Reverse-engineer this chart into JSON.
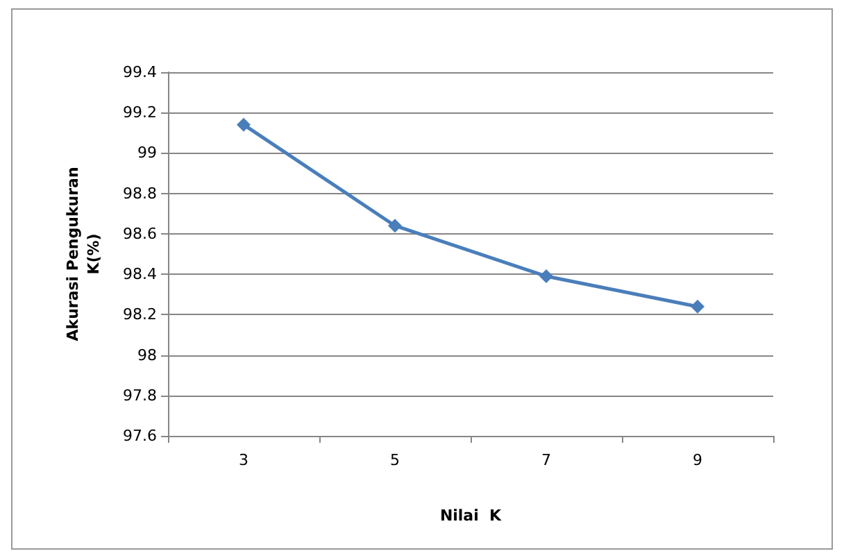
{
  "chart_data": {
    "type": "line",
    "xlabel": "Nilai  K",
    "ylabel": "Akurasi Pengukuran K(%)",
    "categories": [
      "3",
      "5",
      "7",
      "9"
    ],
    "series": [
      {
        "color": "#4a7ebb",
        "values": [
          99.14,
          98.64,
          98.39,
          98.24
        ]
      }
    ],
    "ylim": [
      97.6,
      99.4
    ],
    "yticks": [
      97.6,
      97.8,
      98,
      98.2,
      98.4,
      98.6,
      98.8,
      99,
      99.2,
      99.4
    ],
    "grid": "y",
    "marker": "diamond",
    "line_style": "solid"
  }
}
